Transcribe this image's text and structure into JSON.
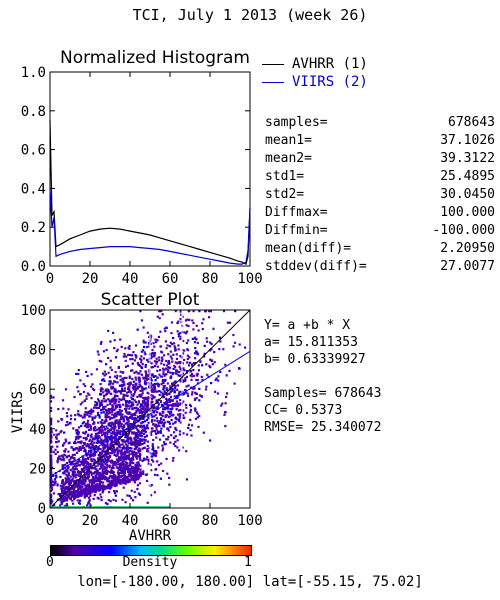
{
  "header": {
    "title": "TCI,  July 1 2013 (week 26)"
  },
  "histogram": {
    "title": "Normalized Histogram",
    "legend": [
      {
        "label": "AVHRR (1)",
        "color": "#000000"
      },
      {
        "label": "VIIRS (2)",
        "color": "#0000cc"
      }
    ],
    "stats": [
      {
        "label": "samples=",
        "value": "678643"
      },
      {
        "label": "mean1=",
        "value": "37.1026"
      },
      {
        "label": "mean2=",
        "value": "39.3122"
      },
      {
        "label": "std1=",
        "value": "25.4895"
      },
      {
        "label": "std2=",
        "value": "30.0450"
      },
      {
        "label": "Diffmax=",
        "value": "100.000"
      },
      {
        "label": "Diffmin=",
        "value": "-100.000"
      },
      {
        "label": "mean(diff)=",
        "value": "2.20950"
      },
      {
        "label": "stddev(diff)=",
        "value": "27.0077"
      }
    ]
  },
  "scatter": {
    "title": "Scatter Plot",
    "equation": "Y= a +b * X",
    "a_text": "a= 15.811353",
    "b_text": "b= 0.63339927",
    "samples_text": "Samples= 678643",
    "cc_text": "CC=  0.5373",
    "rmse_text": "RMSE= 25.340072"
  },
  "colorbar": {
    "label": "Density",
    "min_label": "0",
    "max_label": "1"
  },
  "footer": {
    "text": "lon=[-180.00, 180.00] lat=[-55.15, 75.02]"
  },
  "chart_data": [
    {
      "type": "line",
      "title": "Normalized Histogram",
      "xlim": [
        0,
        100
      ],
      "ylim": [
        0,
        1
      ],
      "xticks": [
        "0",
        "20",
        "40",
        "60",
        "80",
        "100"
      ],
      "yticks": [
        "0.0",
        "0.2",
        "0.4",
        "0.6",
        "0.8",
        "1.0"
      ],
      "x": [
        0,
        1,
        2,
        3,
        5,
        10,
        15,
        20,
        25,
        30,
        35,
        40,
        45,
        50,
        55,
        60,
        65,
        70,
        75,
        80,
        85,
        90,
        94,
        96,
        97,
        98,
        99,
        100
      ],
      "series": [
        {
          "name": "AVHRR (1)",
          "color": "#000000",
          "values": [
            0.75,
            0.26,
            0.28,
            0.1,
            0.11,
            0.14,
            0.16,
            0.18,
            0.19,
            0.195,
            0.19,
            0.18,
            0.17,
            0.16,
            0.145,
            0.13,
            0.115,
            0.1,
            0.085,
            0.07,
            0.055,
            0.04,
            0.025,
            0.02,
            0.015,
            0.01,
            0.05,
            0.3
          ]
        },
        {
          "name": "VIIRS (2)",
          "color": "#0000cc",
          "values": [
            0.4,
            0.2,
            0.25,
            0.05,
            0.06,
            0.075,
            0.085,
            0.09,
            0.095,
            0.1,
            0.1,
            0.1,
            0.095,
            0.09,
            0.085,
            0.075,
            0.065,
            0.055,
            0.045,
            0.035,
            0.025,
            0.015,
            0.01,
            0.01,
            0.015,
            0.02,
            0.08,
            0.3
          ]
        }
      ]
    },
    {
      "type": "scatter",
      "title": "Scatter Plot",
      "xlabel": "AVHRR",
      "ylabel": "VIIRS",
      "xlim": [
        0,
        100
      ],
      "ylim": [
        0,
        100
      ],
      "xticks": [
        "0",
        "20",
        "40",
        "60",
        "80",
        "100"
      ],
      "yticks": [
        "0",
        "20",
        "40",
        "60",
        "80",
        "100"
      ],
      "regression": {
        "a": 15.811353,
        "b": 0.63339927
      },
      "samples": 678643,
      "cc": 0.5373,
      "rmse": 25.340072,
      "density_colorbar": {
        "label": "Density",
        "range": [
          0,
          1
        ]
      }
    }
  ]
}
